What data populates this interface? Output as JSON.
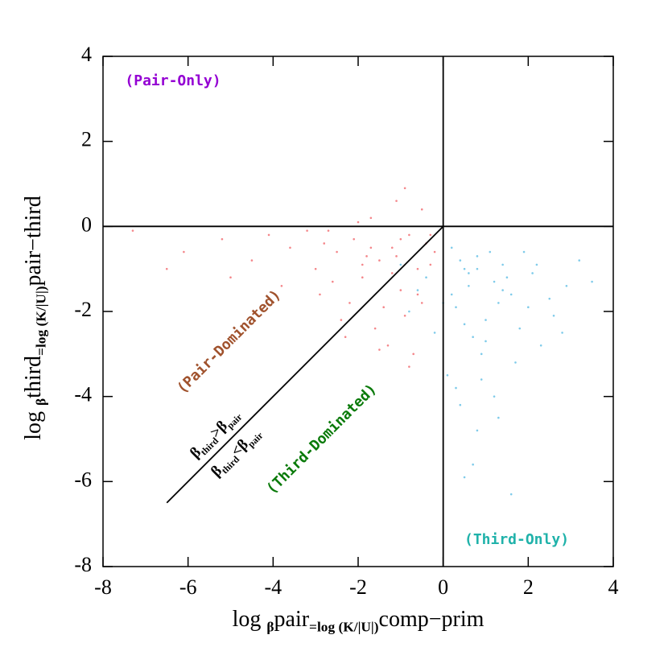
{
  "chart_data": {
    "type": "scatter",
    "x_label": [
      "log ",
      "β",
      "pair",
      "=log (K/|U|)",
      "comp−prim"
    ],
    "y_label": [
      "log ",
      "β",
      "third",
      "=log (K/|U|)",
      "pair−third"
    ],
    "xlim": [
      -8,
      4
    ],
    "ylim": [
      -8,
      4
    ],
    "xticks": [
      -8,
      -6,
      -4,
      -2,
      0,
      2,
      4
    ],
    "yticks": [
      -8,
      -6,
      -4,
      -2,
      0,
      2,
      4
    ],
    "series": [
      {
        "color": "#f4868a",
        "x": [
          -1.2,
          -0.8,
          -1.5,
          -2.1,
          -0.5,
          -1.9,
          -2.5,
          -0.3,
          -1.0,
          -1.7,
          -2.8,
          -3.2,
          -0.9,
          -1.3,
          -0.6,
          -2.2,
          -1.1,
          -0.4,
          -1.8,
          -2.6,
          -3.6,
          -4.1,
          -0.7,
          -1.4,
          -2.0,
          -1.6,
          -0.2,
          -2.4,
          -3.0,
          -4.5,
          -5.2,
          -6.1,
          -7.3,
          -0.9,
          -1.2,
          -1.9,
          -0.6,
          -2.9,
          -1.0,
          -0.3,
          -1.5,
          -2.3,
          -3.8,
          -5.0,
          -0.8,
          -1.1,
          -0.5,
          -2.7,
          -1.7,
          -6.5
        ],
        "y": [
          -0.5,
          -0.2,
          -0.8,
          -0.3,
          0.4,
          -1.2,
          -0.6,
          -0.9,
          -1.5,
          0.2,
          -0.4,
          -0.1,
          -2.1,
          -2.8,
          -1.0,
          -1.8,
          0.6,
          -0.4,
          -0.7,
          -1.3,
          -0.5,
          -0.2,
          -3.0,
          -1.9,
          0.1,
          -2.4,
          -0.6,
          -2.2,
          -1.0,
          -0.8,
          -0.3,
          -0.6,
          -0.1,
          0.9,
          -1.1,
          -0.9,
          -1.6,
          -1.6,
          -0.3,
          -0.2,
          -2.9,
          -2.6,
          -1.4,
          -1.2,
          -3.3,
          -0.7,
          -1.8,
          -0.1,
          -0.5,
          -1.0
        ]
      },
      {
        "color": "#7fcbea",
        "x": [
          0.5,
          1.2,
          0.8,
          1.6,
          2.1,
          0.3,
          1.0,
          1.4,
          2.5,
          0.7,
          -0.4,
          -0.8,
          0.2,
          1.8,
          2.9,
          3.2,
          0.9,
          1.3,
          0.1,
          0.6,
          1.1,
          1.7,
          2.3,
          0.4,
          -0.2,
          0.8,
          1.5,
          2.0,
          0.3,
          0.6,
          1.0,
          1.9,
          2.6,
          0.2,
          0.7,
          1.2,
          -0.6,
          -1.0,
          0.5,
          1.4,
          2.2,
          0.9,
          0.4,
          1.6,
          3.5,
          0.0,
          0.8,
          1.3,
          0.5,
          2.8
        ],
        "y": [
          -1.0,
          -1.3,
          -0.7,
          -1.6,
          -1.1,
          -1.9,
          -2.2,
          -0.9,
          -1.7,
          -2.6,
          -1.2,
          -2.0,
          -0.5,
          -2.4,
          -1.4,
          -0.8,
          -3.0,
          -1.8,
          -3.5,
          -1.4,
          -0.6,
          -3.2,
          -2.8,
          -4.2,
          -2.5,
          -4.8,
          -1.2,
          -1.9,
          -3.8,
          -1.1,
          -2.7,
          -0.6,
          -2.1,
          -1.6,
          -5.6,
          -4.0,
          -1.5,
          -0.9,
          -2.3,
          -1.5,
          -0.9,
          -3.6,
          -0.8,
          -6.3,
          -1.3,
          -1.8,
          -1.0,
          -4.5,
          -5.9,
          -2.5
        ]
      }
    ],
    "reference_lines": [
      {
        "x": [
          0,
          0
        ],
        "y": [
          -8,
          4
        ]
      },
      {
        "x": [
          -8,
          4
        ],
        "y": [
          0,
          0
        ]
      },
      {
        "x": [
          -6.5,
          0
        ],
        "y": [
          -6.5,
          0
        ]
      }
    ],
    "annotations": [
      {
        "text": "(Pair-Only)",
        "color": "#9400d3"
      },
      {
        "text": "(Pair-Dominated)",
        "color": "#a0522d"
      },
      {
        "text": "(Third-Dominated)",
        "color": "#0a7a0a"
      },
      {
        "text": "(Third-Only)",
        "color": "#20b2aa"
      }
    ],
    "inequalities": [
      [
        "β",
        "third",
        ">β",
        "pair"
      ],
      [
        "β",
        "third",
        "<β",
        "pair"
      ]
    ]
  }
}
